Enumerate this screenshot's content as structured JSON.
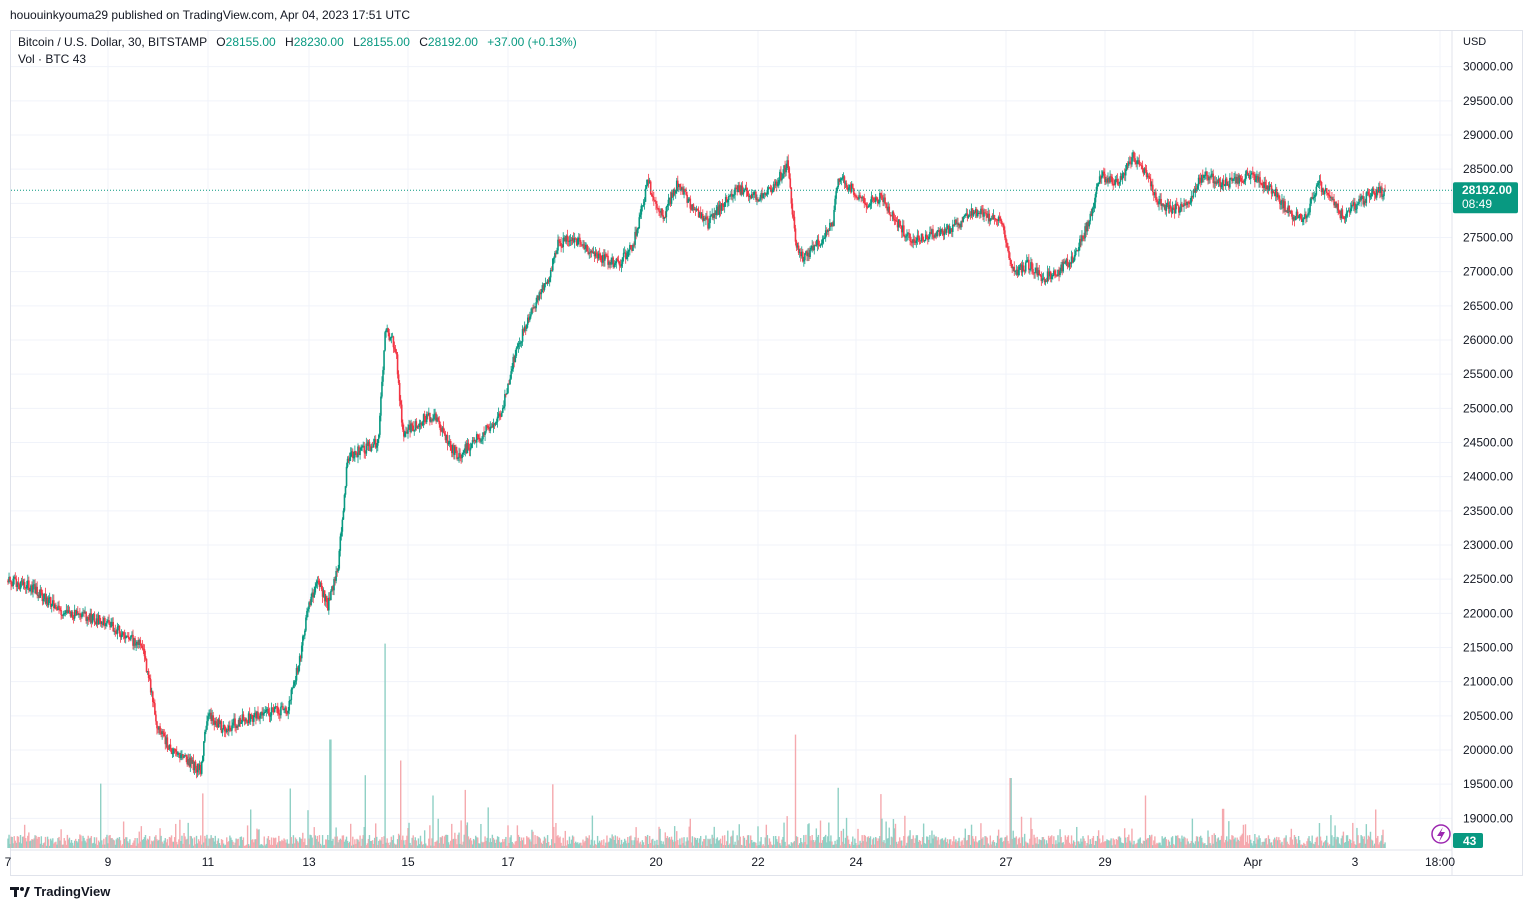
{
  "header": {
    "published": "hououinkyouma29 published on TradingView.com, Apr 04, 2023 17:51 UTC"
  },
  "legend": {
    "symbol": "Bitcoin / U.S. Dollar, 30, BITSTAMP",
    "o_label": "O",
    "o": "28155.00",
    "h_label": "H",
    "h": "28230.00",
    "l_label": "L",
    "l": "28155.00",
    "c_label": "C",
    "c": "28192.00",
    "change": "+37.00 (+0.13%)",
    "vol_label": "Vol · BTC",
    "vol": "43"
  },
  "footer": {
    "brand": "TradingView"
  },
  "colors": {
    "up": "#089981",
    "down": "#f23645",
    "up_vol": "#8fd0c5",
    "down_vol": "#f5a9ae",
    "grid": "#f0f3fa",
    "axis_text": "#131722"
  },
  "chart_data": {
    "type": "candlestick",
    "symbol": "BTCUSD",
    "exchange": "BITSTAMP",
    "interval": "30",
    "currency": "USD",
    "ylim": [
      18600,
      30400
    ],
    "yticks": [
      19000,
      19500,
      20000,
      20500,
      21000,
      21500,
      22000,
      22500,
      23000,
      23500,
      24000,
      24500,
      25000,
      25500,
      26000,
      26500,
      27000,
      27500,
      28000,
      28500,
      29000,
      29500,
      30000
    ],
    "xticks": [
      "7",
      "9",
      "11",
      "13",
      "15",
      "17",
      "20",
      "22",
      "24",
      "27",
      "29",
      "Apr",
      "3",
      "18:00"
    ],
    "last_price": "28192.00",
    "countdown": "08:49",
    "last_volume": "43",
    "path_days": [
      [
        7.0,
        22480
      ],
      [
        7.5,
        22380
      ],
      [
        8.0,
        22050
      ],
      [
        8.5,
        21980
      ],
      [
        9.0,
        21850
      ],
      [
        9.4,
        21650
      ],
      [
        9.7,
        21500
      ],
      [
        10.0,
        20300
      ],
      [
        10.3,
        19950
      ],
      [
        10.6,
        19850
      ],
      [
        10.85,
        19700
      ],
      [
        11.0,
        20550
      ],
      [
        11.3,
        20300
      ],
      [
        11.7,
        20450
      ],
      [
        12.2,
        20550
      ],
      [
        12.6,
        20600
      ],
      [
        12.85,
        21400
      ],
      [
        13.0,
        22100
      ],
      [
        13.2,
        22500
      ],
      [
        13.4,
        22100
      ],
      [
        13.6,
        22700
      ],
      [
        13.8,
        24300
      ],
      [
        14.1,
        24400
      ],
      [
        14.4,
        24500
      ],
      [
        14.55,
        26150
      ],
      [
        14.75,
        25900
      ],
      [
        14.9,
        24600
      ],
      [
        15.2,
        24800
      ],
      [
        15.5,
        24900
      ],
      [
        15.8,
        24500
      ],
      [
        16.0,
        24300
      ],
      [
        16.3,
        24500
      ],
      [
        16.6,
        24700
      ],
      [
        16.9,
        25000
      ],
      [
        17.1,
        25700
      ],
      [
        17.3,
        26100
      ],
      [
        17.6,
        26600
      ],
      [
        17.8,
        26900
      ],
      [
        18.0,
        27400
      ],
      [
        18.3,
        27500
      ],
      [
        18.6,
        27300
      ],
      [
        18.9,
        27200
      ],
      [
        19.2,
        27100
      ],
      [
        19.5,
        27400
      ],
      [
        19.8,
        28300
      ],
      [
        20.1,
        27800
      ],
      [
        20.4,
        28300
      ],
      [
        20.7,
        27900
      ],
      [
        21.0,
        27700
      ],
      [
        21.3,
        28000
      ],
      [
        21.6,
        28200
      ],
      [
        22.0,
        28100
      ],
      [
        22.3,
        28200
      ],
      [
        22.6,
        28600
      ],
      [
        22.75,
        27400
      ],
      [
        22.9,
        27200
      ],
      [
        23.2,
        27400
      ],
      [
        23.5,
        27700
      ],
      [
        23.6,
        28400
      ],
      [
        23.9,
        28200
      ],
      [
        24.2,
        28000
      ],
      [
        24.45,
        28100
      ],
      [
        24.7,
        27800
      ],
      [
        25.0,
        27500
      ],
      [
        25.3,
        27500
      ],
      [
        25.7,
        27600
      ],
      [
        26.0,
        27700
      ],
      [
        26.3,
        27900
      ],
      [
        26.6,
        27800
      ],
      [
        26.9,
        27700
      ],
      [
        27.1,
        27000
      ],
      [
        27.4,
        27100
      ],
      [
        27.7,
        26900
      ],
      [
        28.0,
        27000
      ],
      [
        28.3,
        27200
      ],
      [
        28.6,
        27700
      ],
      [
        28.85,
        28400
      ],
      [
        29.2,
        28300
      ],
      [
        29.5,
        28700
      ],
      [
        29.8,
        28400
      ],
      [
        30.0,
        28000
      ],
      [
        30.3,
        27900
      ],
      [
        30.6,
        28000
      ],
      [
        30.9,
        28450
      ],
      [
        31.2,
        28300
      ],
      [
        31.5,
        28300
      ],
      [
        31.8,
        28400
      ],
      [
        32.1,
        28300
      ],
      [
        32.4,
        28100
      ],
      [
        32.7,
        27800
      ],
      [
        32.95,
        27800
      ],
      [
        33.2,
        28300
      ],
      [
        33.5,
        28000
      ],
      [
        33.7,
        27800
      ],
      [
        34.0,
        28000
      ],
      [
        34.3,
        28150
      ],
      [
        34.55,
        28192
      ]
    ],
    "volume_spikes": [
      [
        8.85,
        9.2
      ],
      [
        10.9,
        7.8
      ],
      [
        11.85,
        5.5
      ],
      [
        12.65,
        8.5
      ],
      [
        13.0,
        5.4
      ],
      [
        13.45,
        15.5
      ],
      [
        14.15,
        10.4
      ],
      [
        14.55,
        29.2
      ],
      [
        14.85,
        12.5
      ],
      [
        15.5,
        7.5
      ],
      [
        16.15,
        8.3
      ],
      [
        16.6,
        5.8
      ],
      [
        17.9,
        9.1
      ],
      [
        22.75,
        16.2
      ],
      [
        23.6,
        8.6
      ],
      [
        24.45,
        7.7
      ],
      [
        27.05,
        10.0
      ],
      [
        29.75,
        7.5
      ],
      [
        31.3,
        5.6
      ],
      [
        33.45,
        4.7
      ],
      [
        34.35,
        5.5
      ]
    ]
  }
}
